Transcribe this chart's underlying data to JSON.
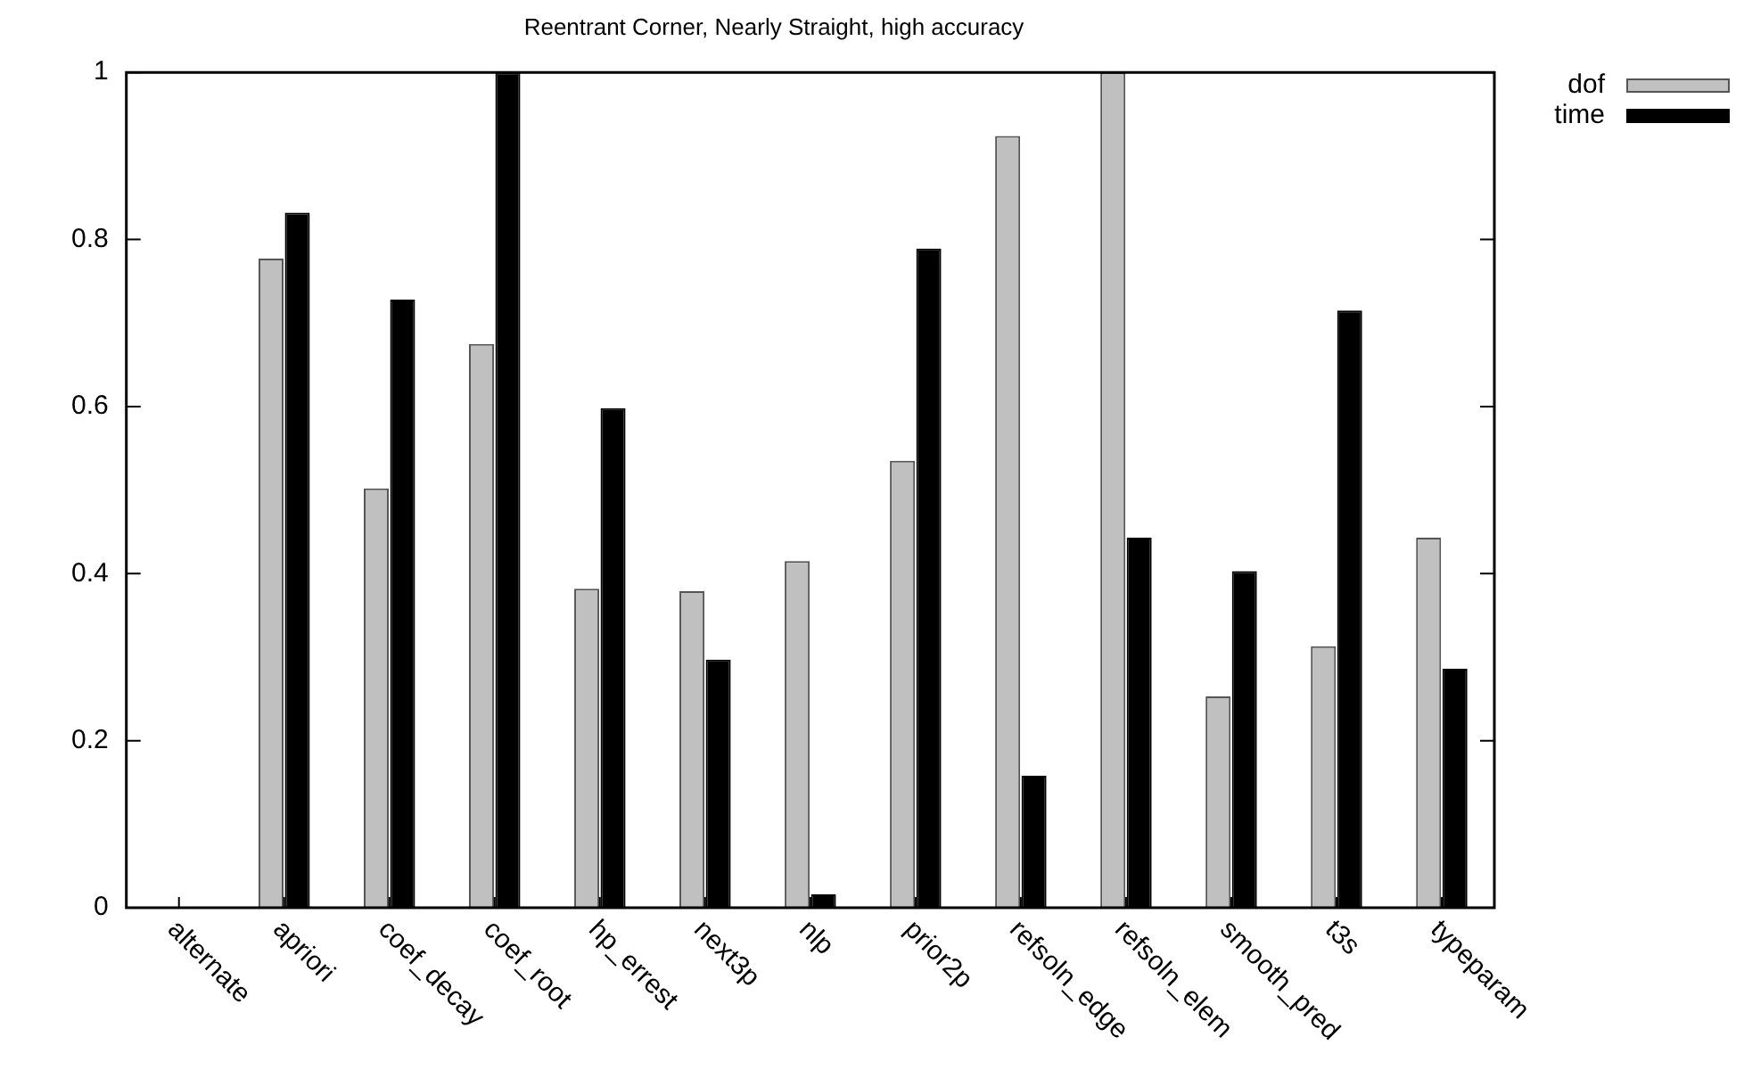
{
  "chart_data": {
    "type": "bar",
    "title": "Reentrant Corner, Nearly Straight, high accuracy",
    "categories": [
      "alternate",
      "apriori",
      "coef_decay",
      "coef_root",
      "hp_errest",
      "next3p",
      "nlp",
      "prior2p",
      "refsoln_edge",
      "refsoln_elem",
      "smooth_pred",
      "t3s",
      "typeparam"
    ],
    "series": [
      {
        "name": "dof",
        "color": "#c0c0c0",
        "values": [
          0,
          0.777,
          0.502,
          0.675,
          0.382,
          0.379,
          0.415,
          0.535,
          0.924,
          1.0,
          0.253,
          0.313,
          0.443
        ]
      },
      {
        "name": "time",
        "color": "#000000",
        "values": [
          0,
          0.832,
          0.728,
          1.0,
          0.598,
          0.297,
          0.016,
          0.789,
          0.158,
          0.443,
          0.403,
          0.715,
          0.286
        ]
      }
    ],
    "ylim": [
      0,
      1
    ],
    "yticks": [
      0,
      0.2,
      0.4,
      0.6,
      0.8,
      1
    ],
    "grid": false,
    "legend": "top right"
  }
}
